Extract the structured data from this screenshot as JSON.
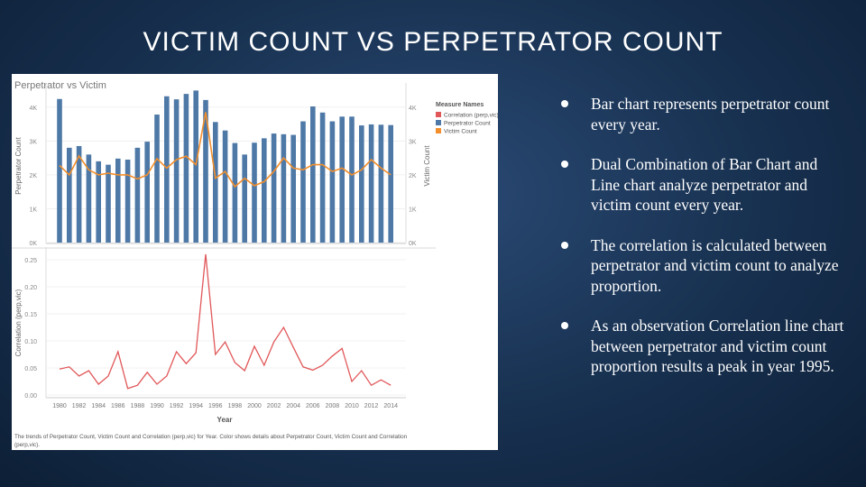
{
  "slide": {
    "title": "Victim Count vs Perpetrator Count"
  },
  "bullets": [
    "Bar chart represents perpetrator count every year.",
    "Dual Combination of Bar Chart and Line chart analyze perpetrator and victim count every year.",
    "The correlation is calculated between perpetrator and victim count to analyze proportion.",
    "As an observation Correlation line chart  between perpetrator and victim count proportion results a peak in year 1995."
  ],
  "colors": {
    "perpetrator": "#4e79a7",
    "victim": "#f28e2b",
    "correlation": "#e15759"
  },
  "chart_data": [
    {
      "type": "bar",
      "title": "Perpetrator vs Victim",
      "ylabel": "Perpetrator Count",
      "y2label": "Victim Count",
      "x": [
        1980,
        1981,
        1982,
        1983,
        1984,
        1985,
        1986,
        1987,
        1988,
        1989,
        1990,
        1991,
        1992,
        1993,
        1994,
        1995,
        1996,
        1997,
        1998,
        1999,
        2000,
        2001,
        2002,
        2003,
        2004,
        2005,
        2006,
        2007,
        2008,
        2009,
        2010,
        2011,
        2012,
        2013,
        2014
      ],
      "ylim": [
        0,
        4500
      ],
      "yticks": [
        "0K",
        "1K",
        "2K",
        "3K",
        "4K"
      ],
      "y2ticks": [
        "0K",
        "1K",
        "2K",
        "3K",
        "4K"
      ],
      "series": [
        {
          "name": "Perpetrator Count",
          "type": "bar",
          "values": [
            4240,
            2800,
            2850,
            2600,
            2400,
            2300,
            2480,
            2450,
            2800,
            2980,
            3780,
            4320,
            4230,
            4390,
            4490,
            4210,
            3560,
            3310,
            2940,
            2600,
            2950,
            3080,
            3220,
            3200,
            3180,
            3580,
            4020,
            3840,
            3580,
            3720,
            3720,
            3460,
            3490,
            3480,
            3470
          ]
        },
        {
          "name": "Victim Count",
          "type": "line",
          "values": [
            2280,
            2000,
            2560,
            2150,
            2000,
            2050,
            2000,
            2000,
            1880,
            2000,
            2480,
            2200,
            2450,
            2550,
            2300,
            3850,
            1900,
            2100,
            1650,
            1900,
            1680,
            1800,
            2100,
            2500,
            2200,
            2150,
            2300,
            2300,
            2100,
            2200,
            2000,
            2150,
            2450,
            2200,
            2000
          ]
        }
      ],
      "legend": {
        "title": "Measure Names",
        "items": [
          "Correlation (perp,vic)",
          "Perpetrator Count",
          "Victim Count"
        ],
        "placement": "right"
      }
    },
    {
      "type": "line",
      "title": "",
      "xlabel": "Year",
      "ylabel": "Correlation (perp,vic)",
      "ylim": [
        0,
        0.26
      ],
      "yticks": [
        "0.00",
        "0.05",
        "0.10",
        "0.15",
        "0.20",
        "0.25"
      ],
      "xticks": [
        "1980",
        "1982",
        "1984",
        "1986",
        "1988",
        "1990",
        "1992",
        "1994",
        "1996",
        "1998",
        "2000",
        "2002",
        "2004",
        "2006",
        "2008",
        "2010",
        "2012",
        "2014"
      ],
      "x": [
        1980,
        1981,
        1982,
        1983,
        1984,
        1985,
        1986,
        1987,
        1988,
        1989,
        1990,
        1991,
        1992,
        1993,
        1994,
        1995,
        1996,
        1997,
        1998,
        1999,
        2000,
        2001,
        2002,
        2003,
        2004,
        2005,
        2006,
        2007,
        2008,
        2009,
        2010,
        2011,
        2012,
        2013,
        2014
      ],
      "series": [
        {
          "name": "Correlation (perp,vic)",
          "values": [
            0.048,
            0.052,
            0.035,
            0.045,
            0.02,
            0.035,
            0.08,
            0.012,
            0.018,
            0.042,
            0.02,
            0.035,
            0.08,
            0.058,
            0.078,
            0.26,
            0.075,
            0.098,
            0.06,
            0.045,
            0.09,
            0.055,
            0.098,
            0.125,
            0.088,
            0.052,
            0.046,
            0.055,
            0.072,
            0.086,
            0.025,
            0.045,
            0.018,
            0.028,
            0.018
          ]
        }
      ]
    }
  ],
  "caption": "The trends of Perpetrator Count, Victim Count and Correlation (perp,vic) for Year.  Color shows details about Perpetrator Count, Victim Count and Correlation (perp,vic)."
}
